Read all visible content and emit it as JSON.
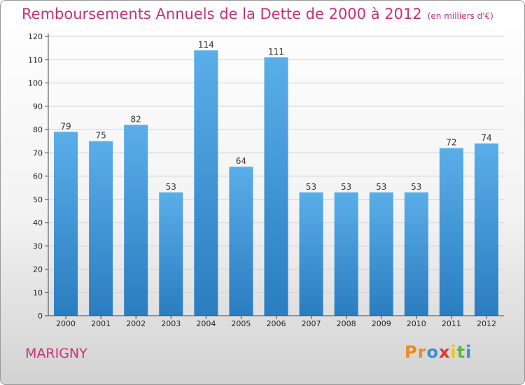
{
  "title": "Remboursements Annuels de la Dette de 2000 à 2012",
  "unit": "(en milliers d'€)",
  "place": "MARIGNY",
  "logo": {
    "text": "Proxiti",
    "letters": [
      "P",
      "r",
      "o",
      "x",
      "i",
      "t",
      "i"
    ],
    "colors": [
      "#f08a1c",
      "#f08a1c",
      "#3a8fd6",
      "#e0362c",
      "#f0c41c",
      "#62b441",
      "#3a8fd6"
    ]
  },
  "colors": {
    "title": "#cc2f7a",
    "bar_top": "#5aaee8",
    "bar_bottom": "#2a7dc0",
    "grid": "#d0d0d0"
  },
  "chart_data": {
    "type": "bar",
    "categories": [
      "2000",
      "2001",
      "2002",
      "2003",
      "2004",
      "2005",
      "2006",
      "2007",
      "2008",
      "2009",
      "2010",
      "2011",
      "2012"
    ],
    "values": [
      79,
      75,
      82,
      53,
      114,
      64,
      111,
      53,
      53,
      53,
      53,
      72,
      74
    ],
    "ylim": [
      0,
      120
    ],
    "yticks": [
      0,
      10,
      20,
      30,
      40,
      50,
      60,
      70,
      80,
      90,
      100,
      110,
      120
    ],
    "grid": true
  }
}
